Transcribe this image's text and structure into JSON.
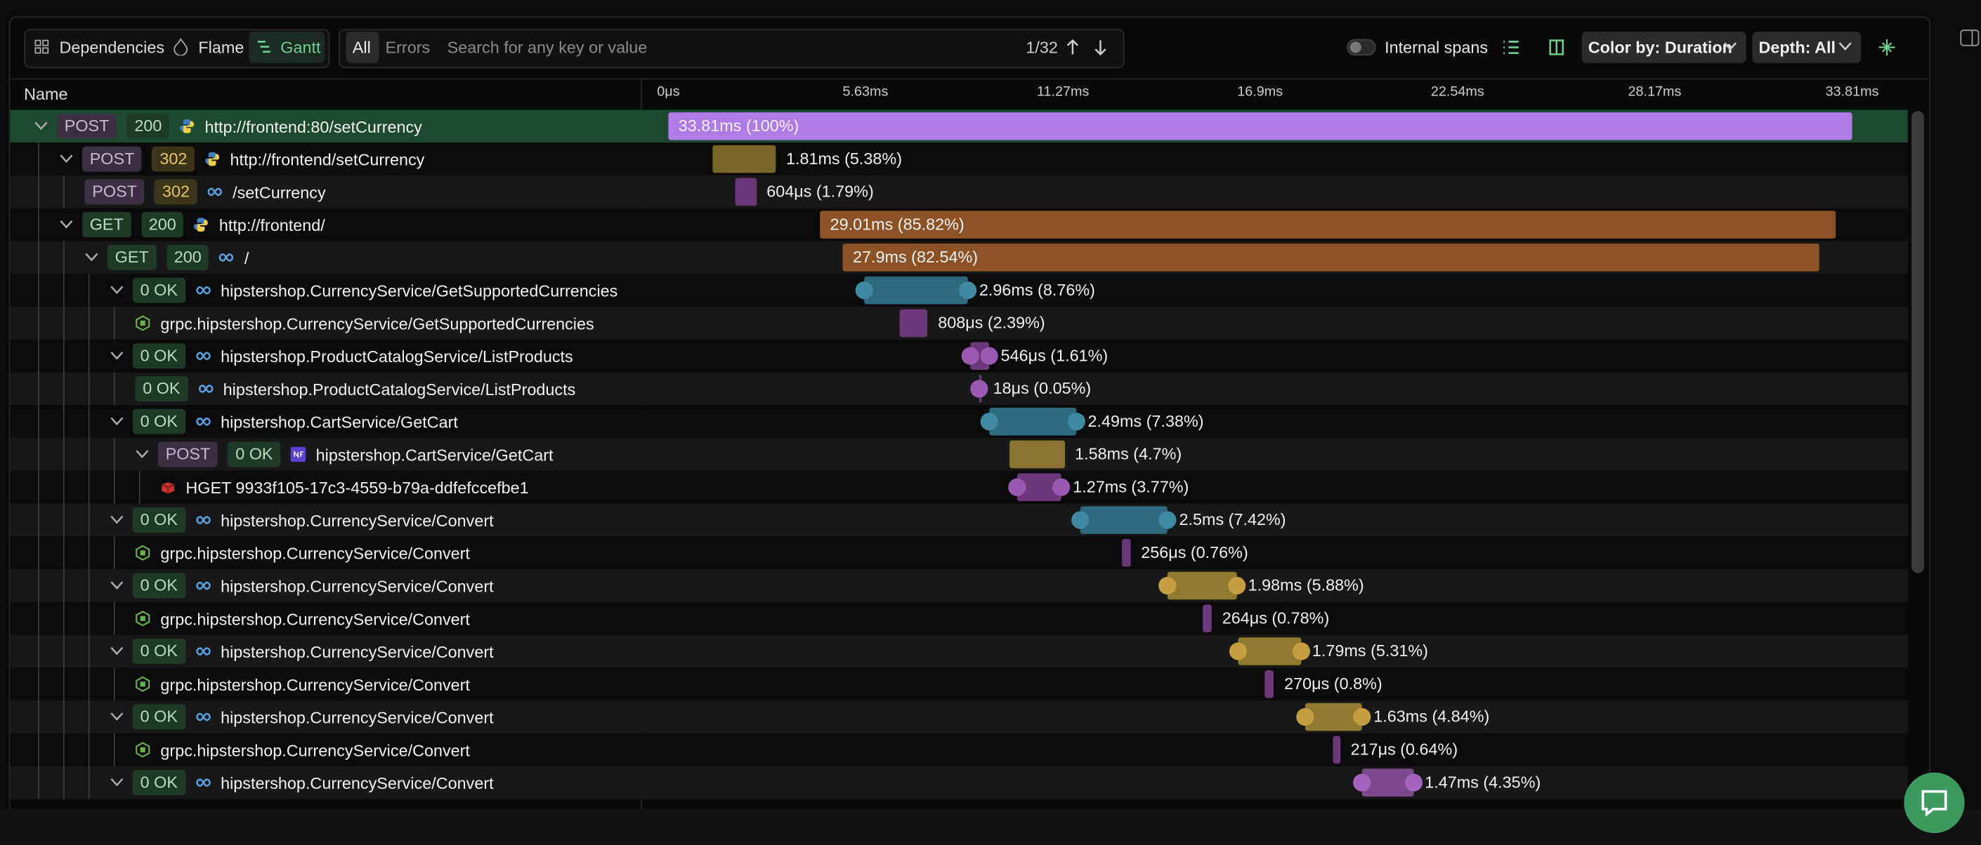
{
  "toolbar": {
    "view_tabs": [
      "Dependencies",
      "Flame",
      "Gantt"
    ],
    "filter_tabs": [
      "All",
      "Errors"
    ],
    "search_placeholder": "Search for any key or value",
    "match_count": "1/32",
    "internal_spans": "Internal spans",
    "color_by": "Color by: Duration",
    "depth": "Depth: All"
  },
  "table": {
    "name_header": "Name",
    "timeline": {
      "xlim": [
        0,
        33.81
      ],
      "ticks": [
        {
          "value": 0,
          "label": "0μs"
        },
        {
          "value": 5.63,
          "label": "5.63ms"
        },
        {
          "value": 11.27,
          "label": "11.27ms"
        },
        {
          "value": 16.9,
          "label": "16.9ms"
        },
        {
          "value": 22.54,
          "label": "22.54ms"
        },
        {
          "value": 28.17,
          "label": "28.17ms"
        },
        {
          "value": 33.81,
          "label": "33.81ms"
        }
      ]
    },
    "rows": [
      {
        "method": "POST",
        "status": "200",
        "name": "http://frontend:80/setCurrency",
        "duration": 33.81,
        "duration_label": "33.81ms (100%)"
      },
      {
        "method": "POST",
        "status": "302",
        "name": "http://frontend/setCurrency",
        "duration": 1.81,
        "duration_label": "1.81ms (5.38%)"
      },
      {
        "method": "POST",
        "status": "302",
        "name": "/setCurrency",
        "duration": 0.604,
        "duration_label": "604μs (1.79%)"
      },
      {
        "method": "GET",
        "status": "200",
        "name": "http://frontend/",
        "duration": 29.01,
        "duration_label": "29.01ms (85.82%)"
      },
      {
        "method": "GET",
        "status": "200",
        "name": "/",
        "duration": 27.9,
        "duration_label": "27.9ms (82.54%)"
      },
      {
        "status": "0 OK",
        "name": "hipstershop.CurrencyService/GetSupportedCurrencies",
        "duration": 2.96,
        "duration_label": "2.96ms (8.76%)"
      },
      {
        "name": "grpc.hipstershop.CurrencyService/GetSupportedCurrencies",
        "duration": 0.808,
        "duration_label": "808μs (2.39%)"
      },
      {
        "status": "0 OK",
        "name": "hipstershop.ProductCatalogService/ListProducts",
        "duration": 0.546,
        "duration_label": "546μs (1.61%)"
      },
      {
        "status": "0 OK",
        "name": "hipstershop.ProductCatalogService/ListProducts",
        "duration": 0.018,
        "duration_label": "18μs (0.05%)"
      },
      {
        "status": "0 OK",
        "name": "hipstershop.CartService/GetCart",
        "duration": 2.49,
        "duration_label": "2.49ms (7.38%)"
      },
      {
        "method": "POST",
        "status": "0 OK",
        "name": "hipstershop.CartService/GetCart",
        "duration": 1.58,
        "duration_label": "1.58ms (4.7%)"
      },
      {
        "name": "HGET 9933f105-17c3-4559-b79a-ddfefccefbe1",
        "duration": 1.27,
        "duration_label": "1.27ms (3.77%)"
      },
      {
        "status": "0 OK",
        "name": "hipstershop.CurrencyService/Convert",
        "duration": 2.5,
        "duration_label": "2.5ms (7.42%)"
      },
      {
        "name": "grpc.hipstershop.CurrencyService/Convert",
        "duration": 0.256,
        "duration_label": "256μs (0.76%)"
      },
      {
        "status": "0 OK",
        "name": "hipstershop.CurrencyService/Convert",
        "duration": 1.98,
        "duration_label": "1.98ms (5.88%)"
      },
      {
        "name": "grpc.hipstershop.CurrencyService/Convert",
        "duration": 0.264,
        "duration_label": "264μs (0.78%)"
      },
      {
        "status": "0 OK",
        "name": "hipstershop.CurrencyService/Convert",
        "duration": 1.79,
        "duration_label": "1.79ms (5.31%)"
      },
      {
        "name": "grpc.hipstershop.CurrencyService/Convert",
        "duration": 0.27,
        "duration_label": "270μs (0.8%)"
      },
      {
        "status": "0 OK",
        "name": "hipstershop.CurrencyService/Convert",
        "duration": 1.63,
        "duration_label": "1.63ms (4.84%)"
      },
      {
        "name": "grpc.hipstershop.CurrencyService/Convert",
        "duration": 0.217,
        "duration_label": "217μs (0.64%)"
      },
      {
        "status": "0 OK",
        "name": "hipstershop.CurrencyService/Convert",
        "duration": 1.47,
        "duration_label": "1.47ms (4.35%)"
      }
    ]
  }
}
